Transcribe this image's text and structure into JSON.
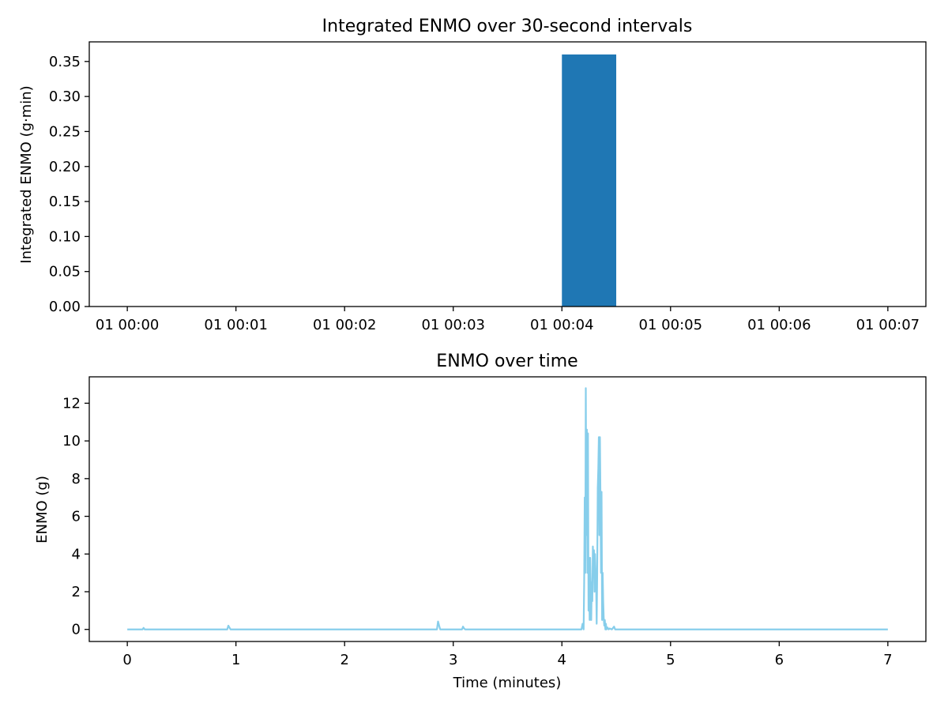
{
  "chart_data": [
    {
      "type": "bar",
      "title": "Integrated ENMO over 30-second intervals",
      "xlabel": "",
      "ylabel": "Integrated ENMO (g·min)",
      "x_ticks": [
        "01 00:00",
        "01 00:01",
        "01 00:02",
        "01 00:03",
        "01 00:04",
        "01 00:05",
        "01 00:06",
        "01 00:07"
      ],
      "y_ticks": [
        "0.00",
        "0.05",
        "0.10",
        "0.15",
        "0.20",
        "0.25",
        "0.30",
        "0.35"
      ],
      "xlim_minutes": [
        -0.35,
        7.35
      ],
      "ylim": [
        0,
        0.378
      ],
      "bar_width_minutes": 0.5,
      "bars": [
        {
          "start_minutes": 4.0,
          "value": 0.36
        }
      ],
      "color": "#1f77b4",
      "grid": false
    },
    {
      "type": "line",
      "title": "ENMO over time",
      "xlabel": "Time (minutes)",
      "ylabel": "ENMO (g)",
      "x_ticks": [
        0,
        1,
        2,
        3,
        4,
        5,
        6,
        7
      ],
      "y_ticks": [
        0,
        2,
        4,
        6,
        8,
        10,
        12
      ],
      "xlim": [
        -0.35,
        7.35
      ],
      "ylim": [
        -0.64,
        13.4
      ],
      "color": "#87ceeb",
      "grid": false,
      "series": [
        {
          "x": [
            0,
            0.14,
            0.15,
            0.16,
            0.92,
            0.93,
            0.94,
            0.95,
            2.85,
            2.86,
            2.87,
            2.88,
            3.08,
            3.09,
            3.1,
            3.11,
            4.18,
            4.19,
            4.2,
            4.205,
            4.21,
            4.215,
            4.22,
            4.225,
            4.23,
            4.235,
            4.24,
            4.245,
            4.25,
            4.255,
            4.26,
            4.265,
            4.27,
            4.275,
            4.28,
            4.285,
            4.29,
            4.295,
            4.3,
            4.305,
            4.31,
            4.315,
            4.32,
            4.325,
            4.33,
            4.335,
            4.34,
            4.345,
            4.35,
            4.355,
            4.36,
            4.365,
            4.37,
            4.375,
            4.38,
            4.385,
            4.39,
            4.395,
            4.4,
            4.405,
            4.41,
            4.42,
            4.43,
            4.44,
            4.46,
            4.48,
            4.49,
            4.5,
            7.0
          ],
          "y": [
            0,
            0,
            0.08,
            0,
            0,
            0.2,
            0.1,
            0,
            0,
            0.42,
            0.2,
            0,
            0,
            0.15,
            0.05,
            0,
            0,
            0.3,
            0,
            2.5,
            7.0,
            3.0,
            12.8,
            5.0,
            10.6,
            3.0,
            10.4,
            1.0,
            3.8,
            0.5,
            3.8,
            2.5,
            0.5,
            2.5,
            1.5,
            4.4,
            3.0,
            4.2,
            2.0,
            4.0,
            3.0,
            2.5,
            0.3,
            3.0,
            7.5,
            8.5,
            10.2,
            5.0,
            10.2,
            7.0,
            3.0,
            7.3,
            0.5,
            3.0,
            1.5,
            0.6,
            0.2,
            0.5,
            0,
            0.3,
            0,
            0.1,
            0,
            0.05,
            0,
            0.15,
            0,
            0,
            0
          ]
        }
      ]
    }
  ]
}
